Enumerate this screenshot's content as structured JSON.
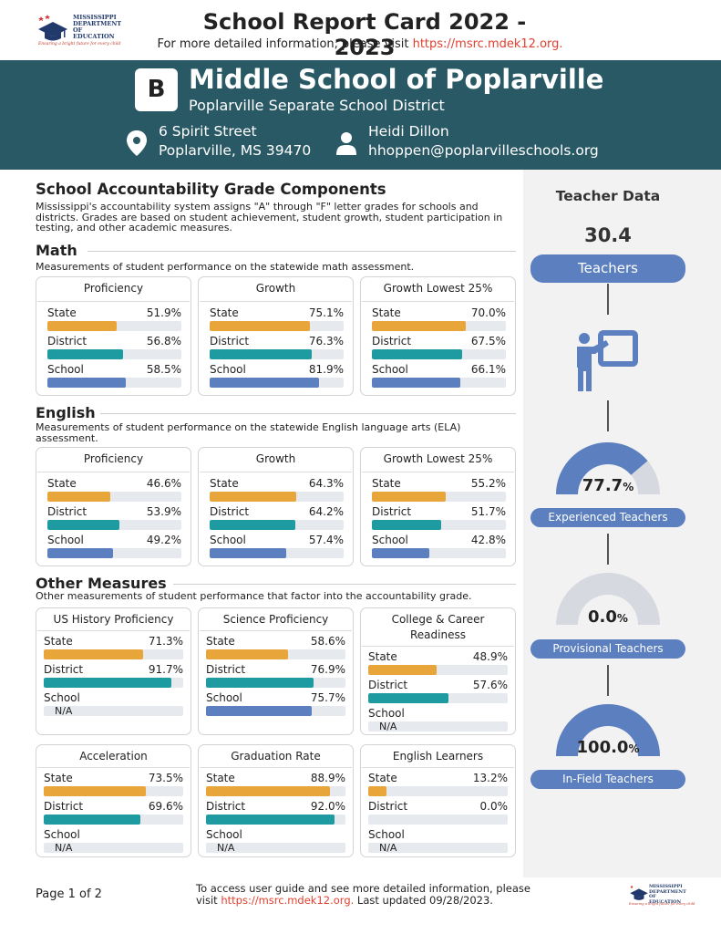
{
  "header": {
    "logo_line1": "MISSISSIPPI",
    "logo_line2": "DEPARTMENT OF",
    "logo_line3": "EDUCATION",
    "logo_tagline": "Ensuring a bright future for every child",
    "title": "School Report Card 2022 - 2023",
    "subtitle_prefix": "For more detailed information, please visit ",
    "subtitle_link": "https://msrc.mdek12.org."
  },
  "school": {
    "grade": "B",
    "name": "Middle School of Poplarville",
    "district": "Poplarville Separate School District",
    "address_line1": "6 Spirit Street",
    "address_line2": "Poplarville, MS 39470",
    "contact_name": "Heidi Dillon",
    "contact_email": "hhoppen@poplarvilleschools.org"
  },
  "accountability": {
    "title": "School Accountability Grade Components",
    "intro": "Mississippi's accountability system assigns \"A\" through \"F\" letter grades for schools and districts. Grades are based on student achievement, student growth, student participation in testing, and other academic measures."
  },
  "row_labels": {
    "state": "State",
    "district": "District",
    "school": "School"
  },
  "na_text": "N/A",
  "colors": {
    "state": "#e8a63a",
    "district": "#1e9ba0",
    "school": "#5b7fbf",
    "panel_accent": "#5b7fbf"
  },
  "math": {
    "title": "Math",
    "desc": "Measurements of student performance on the statewide math assessment.",
    "cards": [
      {
        "title": "Proficiency",
        "state": "51.9%",
        "district": "56.8%",
        "school": "58.5%"
      },
      {
        "title": "Growth",
        "state": "75.1%",
        "district": "76.3%",
        "school": "81.9%"
      },
      {
        "title": "Growth Lowest 25%",
        "state": "70.0%",
        "district": "67.5%",
        "school": "66.1%"
      }
    ]
  },
  "english": {
    "title": "English",
    "desc": "Measurements of student performance on the statewide English language arts (ELA) assessment.",
    "cards": [
      {
        "title": "Proficiency",
        "state": "46.6%",
        "district": "53.9%",
        "school": "49.2%"
      },
      {
        "title": "Growth",
        "state": "64.3%",
        "district": "64.2%",
        "school": "57.4%"
      },
      {
        "title": "Growth Lowest 25%",
        "state": "55.2%",
        "district": "51.7%",
        "school": "42.8%"
      }
    ]
  },
  "other": {
    "title": "Other Measures",
    "desc": "Other measurements of student performance that factor into the accountability grade.",
    "cards": [
      {
        "title": "US History Proficiency",
        "state": "71.3%",
        "district": "91.7%",
        "school": ""
      },
      {
        "title": "Science Proficiency",
        "state": "58.6%",
        "district": "76.9%",
        "school": "75.7%"
      },
      {
        "title": "College & Career Readiness",
        "state": "48.9%",
        "district": "57.6%",
        "school": ""
      },
      {
        "title": "Acceleration",
        "state": "73.5%",
        "district": "69.6%",
        "school": ""
      },
      {
        "title": "Graduation Rate",
        "state": "88.9%",
        "district": "92.0%",
        "school": ""
      },
      {
        "title": "English Learners",
        "state": "13.2%",
        "district": "0.0%",
        "school": ""
      }
    ]
  },
  "teacher_data": {
    "title": "Teacher Data",
    "count": "30.4",
    "count_label": "Teachers",
    "icon": "teacher-board-icon",
    "experienced": {
      "value": "77.7",
      "unit": "%",
      "pct": 77.7,
      "label": "Experienced Teachers"
    },
    "provisional": {
      "value": "0.0",
      "unit": "%",
      "pct": 0.0,
      "label": "Provisional Teachers"
    },
    "infield": {
      "value": "100.0",
      "unit": "%",
      "pct": 100.0,
      "label": "In-Field Teachers"
    }
  },
  "footer": {
    "page": "Page 1 of 2",
    "text_line1": "To access user guide and see more detailed information, please",
    "text_line2_prefix": "visit ",
    "text_line2_link": "https://msrc.mdek12.org.",
    "text_line2_suffix": " Last updated 09/28/2023."
  }
}
